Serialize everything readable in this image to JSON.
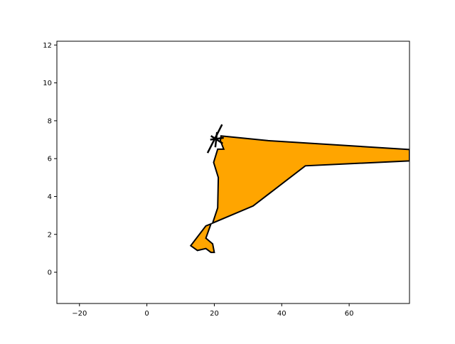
{
  "chart_data": {
    "type": "area",
    "title": "",
    "xlabel": "",
    "ylabel": "",
    "xlim": [
      -26.7,
      77.9
    ],
    "ylim": [
      -1.65,
      12.2
    ],
    "xticks": [
      -20,
      0,
      20,
      40,
      60
    ],
    "yticks": [
      0,
      2,
      4,
      6,
      8,
      10,
      12
    ],
    "grid": false,
    "fill_color": "#FFA500",
    "edge_color": "#000000",
    "polygon": [
      [
        22.0,
        7.2
      ],
      [
        36.0,
        6.95
      ],
      [
        77.9,
        6.48
      ],
      [
        77.9,
        5.88
      ],
      [
        47.0,
        5.62
      ],
      [
        31.5,
        3.5
      ],
      [
        19.5,
        2.6
      ],
      [
        21.0,
        3.4
      ],
      [
        21.2,
        5.0
      ],
      [
        19.8,
        5.8
      ],
      [
        21.0,
        6.5
      ],
      [
        22.8,
        6.5
      ],
      [
        21.8,
        6.95
      ]
    ],
    "lower_polygon": [
      [
        19.0,
        2.55
      ],
      [
        17.5,
        2.45
      ],
      [
        13.0,
        1.4
      ],
      [
        15.0,
        1.15
      ],
      [
        17.5,
        1.25
      ],
      [
        19.0,
        1.05
      ],
      [
        20.0,
        1.05
      ],
      [
        19.5,
        1.5
      ],
      [
        17.5,
        1.8
      ]
    ],
    "star_lines": [
      [
        [
          18.0,
          6.3
        ],
        [
          22.3,
          7.8
        ]
      ],
      [
        [
          18.8,
          7.0
        ],
        [
          22.8,
          7.1
        ]
      ],
      [
        [
          19.0,
          7.2
        ],
        [
          22.5,
          6.8
        ]
      ],
      [
        [
          20.3,
          6.6
        ],
        [
          20.8,
          7.4
        ]
      ]
    ]
  }
}
